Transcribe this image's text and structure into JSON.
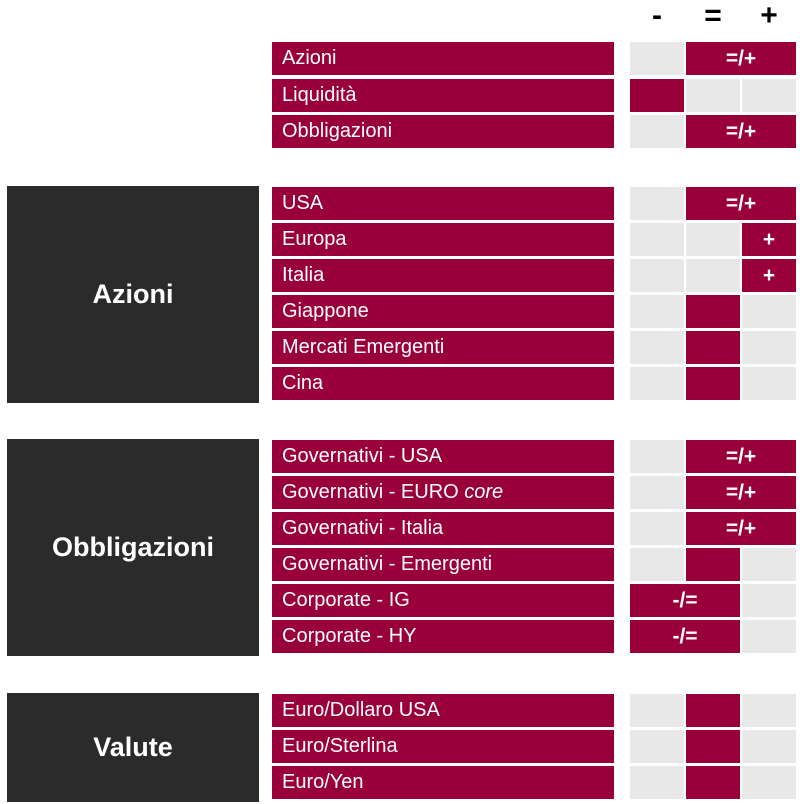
{
  "header": {
    "minus": "-",
    "equal": "=",
    "plus": "+"
  },
  "categories": {
    "azioni": "Azioni",
    "obbligazioni": "Obbligazioni",
    "valute": "Valute"
  },
  "overview": [
    {
      "label": "Azioni",
      "mark": "=/+"
    },
    {
      "label": "Liquidità",
      "mark": ""
    },
    {
      "label": "Obbligazioni",
      "mark": "=/+"
    }
  ],
  "azioni": [
    {
      "label": "USA",
      "mark": "=/+"
    },
    {
      "label": "Europa",
      "mark": "+"
    },
    {
      "label": "Italia",
      "mark": "+"
    },
    {
      "label": "Giappone",
      "mark": ""
    },
    {
      "label": "Mercati Emergenti",
      "mark": ""
    },
    {
      "label": "Cina",
      "mark": ""
    }
  ],
  "obbligazioni": [
    {
      "label": "Governativi - USA",
      "mark": "=/+"
    },
    {
      "label_main": "Governativi - EURO ",
      "label_em": "core",
      "mark": "=/+"
    },
    {
      "label": "Governativi - Italia",
      "mark": "=/+"
    },
    {
      "label": "Governativi - Emergenti",
      "mark": ""
    },
    {
      "label": "Corporate - IG",
      "mark": "-/="
    },
    {
      "label": "Corporate - HY",
      "mark": "-/="
    }
  ],
  "valute": [
    {
      "label": "Euro/Dollaro USA",
      "mark": ""
    },
    {
      "label": "Euro/Sterlina",
      "mark": ""
    },
    {
      "label": "Euro/Yen",
      "mark": ""
    }
  ]
}
